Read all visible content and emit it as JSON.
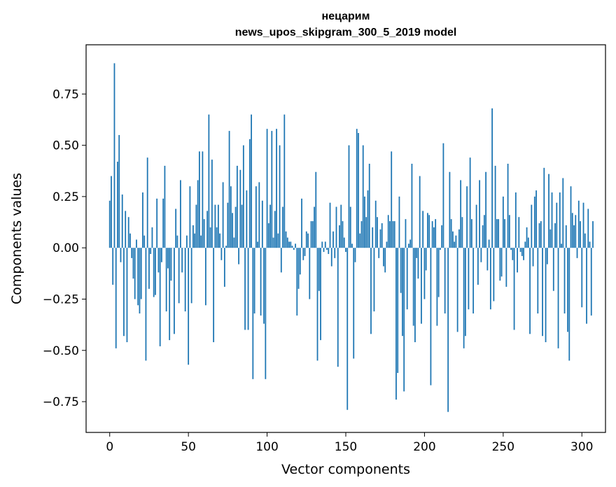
{
  "chart_data": {
    "type": "bar",
    "title_line1": "нецарим",
    "title_line2": "news_upos_skipgram_300_5_2019 model",
    "xlabel": "Vector components",
    "ylabel": "Components values",
    "xlim": [
      -15,
      315
    ],
    "ylim": [
      -0.9,
      0.99
    ],
    "xticks": [
      0,
      50,
      100,
      150,
      200,
      250,
      300
    ],
    "xtick_labels": [
      "0",
      "50",
      "100",
      "150",
      "200",
      "250",
      "300"
    ],
    "yticks": [
      -0.75,
      -0.5,
      -0.25,
      0.0,
      0.25,
      0.5,
      0.75
    ],
    "ytick_labels": [
      "−0.75",
      "−0.50",
      "−0.25",
      "0.00",
      "0.25",
      "0.50",
      "0.75"
    ],
    "bar_color": "#1f77b4",
    "grid": false,
    "values": [
      0.23,
      0.35,
      -0.18,
      0.9,
      -0.49,
      0.42,
      0.55,
      -0.07,
      0.26,
      -0.43,
      0.18,
      -0.46,
      0.15,
      0.07,
      -0.05,
      -0.15,
      -0.25,
      0.04,
      -0.28,
      -0.32,
      -0.25,
      0.27,
      0.06,
      -0.55,
      0.44,
      -0.2,
      -0.03,
      0.1,
      -0.24,
      -0.23,
      0.24,
      -0.12,
      -0.48,
      -0.07,
      0.24,
      0.4,
      -0.31,
      -0.1,
      -0.45,
      -0.16,
      0.0,
      -0.42,
      0.19,
      0.06,
      -0.27,
      0.33,
      -0.12,
      0.0,
      -0.31,
      0.06,
      -0.57,
      0.3,
      -0.27,
      0.11,
      0.07,
      0.21,
      0.33,
      0.47,
      0.06,
      0.47,
      0.14,
      -0.28,
      0.18,
      0.65,
      0.1,
      0.43,
      -0.46,
      0.21,
      0.1,
      0.21,
      0.07,
      -0.06,
      0.32,
      -0.19,
      0.01,
      0.22,
      0.57,
      0.3,
      0.17,
      0.05,
      0.2,
      0.4,
      -0.08,
      0.38,
      0.21,
      0.5,
      -0.4,
      0.28,
      -0.4,
      0.53,
      0.65,
      -0.64,
      -0.32,
      0.3,
      0.03,
      0.32,
      -0.33,
      0.23,
      -0.37,
      -0.64,
      0.58,
      0.12,
      0.21,
      0.57,
      0.05,
      0.18,
      0.58,
      0.07,
      0.5,
      -0.12,
      0.2,
      0.65,
      0.08,
      0.05,
      0.03,
      0.03,
      0.01,
      -0.01,
      0.02,
      -0.33,
      -0.2,
      -0.13,
      0.24,
      -0.06,
      -0.04,
      0.08,
      0.07,
      -0.25,
      0.13,
      0.13,
      0.2,
      0.37,
      -0.55,
      -0.21,
      -0.45,
      0.03,
      -0.02,
      0.03,
      -0.01,
      -0.03,
      0.22,
      -0.09,
      0.08,
      -0.05,
      0.2,
      -0.58,
      0.11,
      0.21,
      0.13,
      0.05,
      -0.02,
      -0.79,
      0.5,
      0.2,
      0.02,
      -0.54,
      -0.07,
      0.58,
      0.56,
      0.07,
      0.13,
      0.5,
      0.25,
      0.15,
      0.28,
      0.41,
      -0.42,
      0.1,
      -0.31,
      0.23,
      0.15,
      -0.05,
      0.09,
      0.12,
      -0.09,
      -0.12,
      0.03,
      0.16,
      0.13,
      0.47,
      0.13,
      0.13,
      -0.74,
      -0.61,
      0.25,
      -0.22,
      -0.43,
      -0.7,
      0.14,
      -0.3,
      0.02,
      0.04,
      0.41,
      -0.38,
      -0.46,
      -0.05,
      -0.15,
      0.35,
      -0.37,
      0.18,
      -0.25,
      -0.11,
      0.17,
      0.16,
      -0.67,
      0.13,
      0.1,
      0.14,
      -0.38,
      -0.24,
      -0.01,
      0.11,
      0.51,
      -0.32,
      0.0,
      -0.8,
      0.37,
      0.14,
      0.08,
      0.03,
      0.06,
      -0.41,
      0.09,
      0.33,
      0.15,
      -0.49,
      -0.43,
      0.3,
      -0.3,
      0.44,
      0.14,
      -0.32,
      0.0,
      0.21,
      -0.18,
      0.33,
      -0.07,
      0.11,
      0.16,
      0.37,
      -0.11,
      0.04,
      -0.3,
      0.68,
      -0.26,
      0.4,
      0.14,
      0.14,
      -0.16,
      -0.14,
      0.25,
      0.14,
      -0.19,
      0.41,
      0.16,
      -0.01,
      -0.06,
      -0.4,
      0.27,
      -0.12,
      0.15,
      -0.02,
      -0.04,
      -0.06,
      0.03,
      0.1,
      0.05,
      -0.42,
      0.21,
      -0.09,
      0.25,
      0.28,
      -0.32,
      0.12,
      0.13,
      -0.43,
      0.39,
      -0.46,
      -0.08,
      0.36,
      0.09,
      0.27,
      -0.21,
      0.12,
      0.22,
      -0.49,
      0.27,
      0.02,
      0.34,
      -0.32,
      0.11,
      -0.41,
      -0.55,
      0.3,
      0.17,
      0.11,
      0.16,
      -0.05,
      0.23,
      0.13,
      -0.29,
      0.22,
      0.07,
      -0.37,
      0.19,
      0.03,
      -0.33,
      0.13
    ]
  }
}
